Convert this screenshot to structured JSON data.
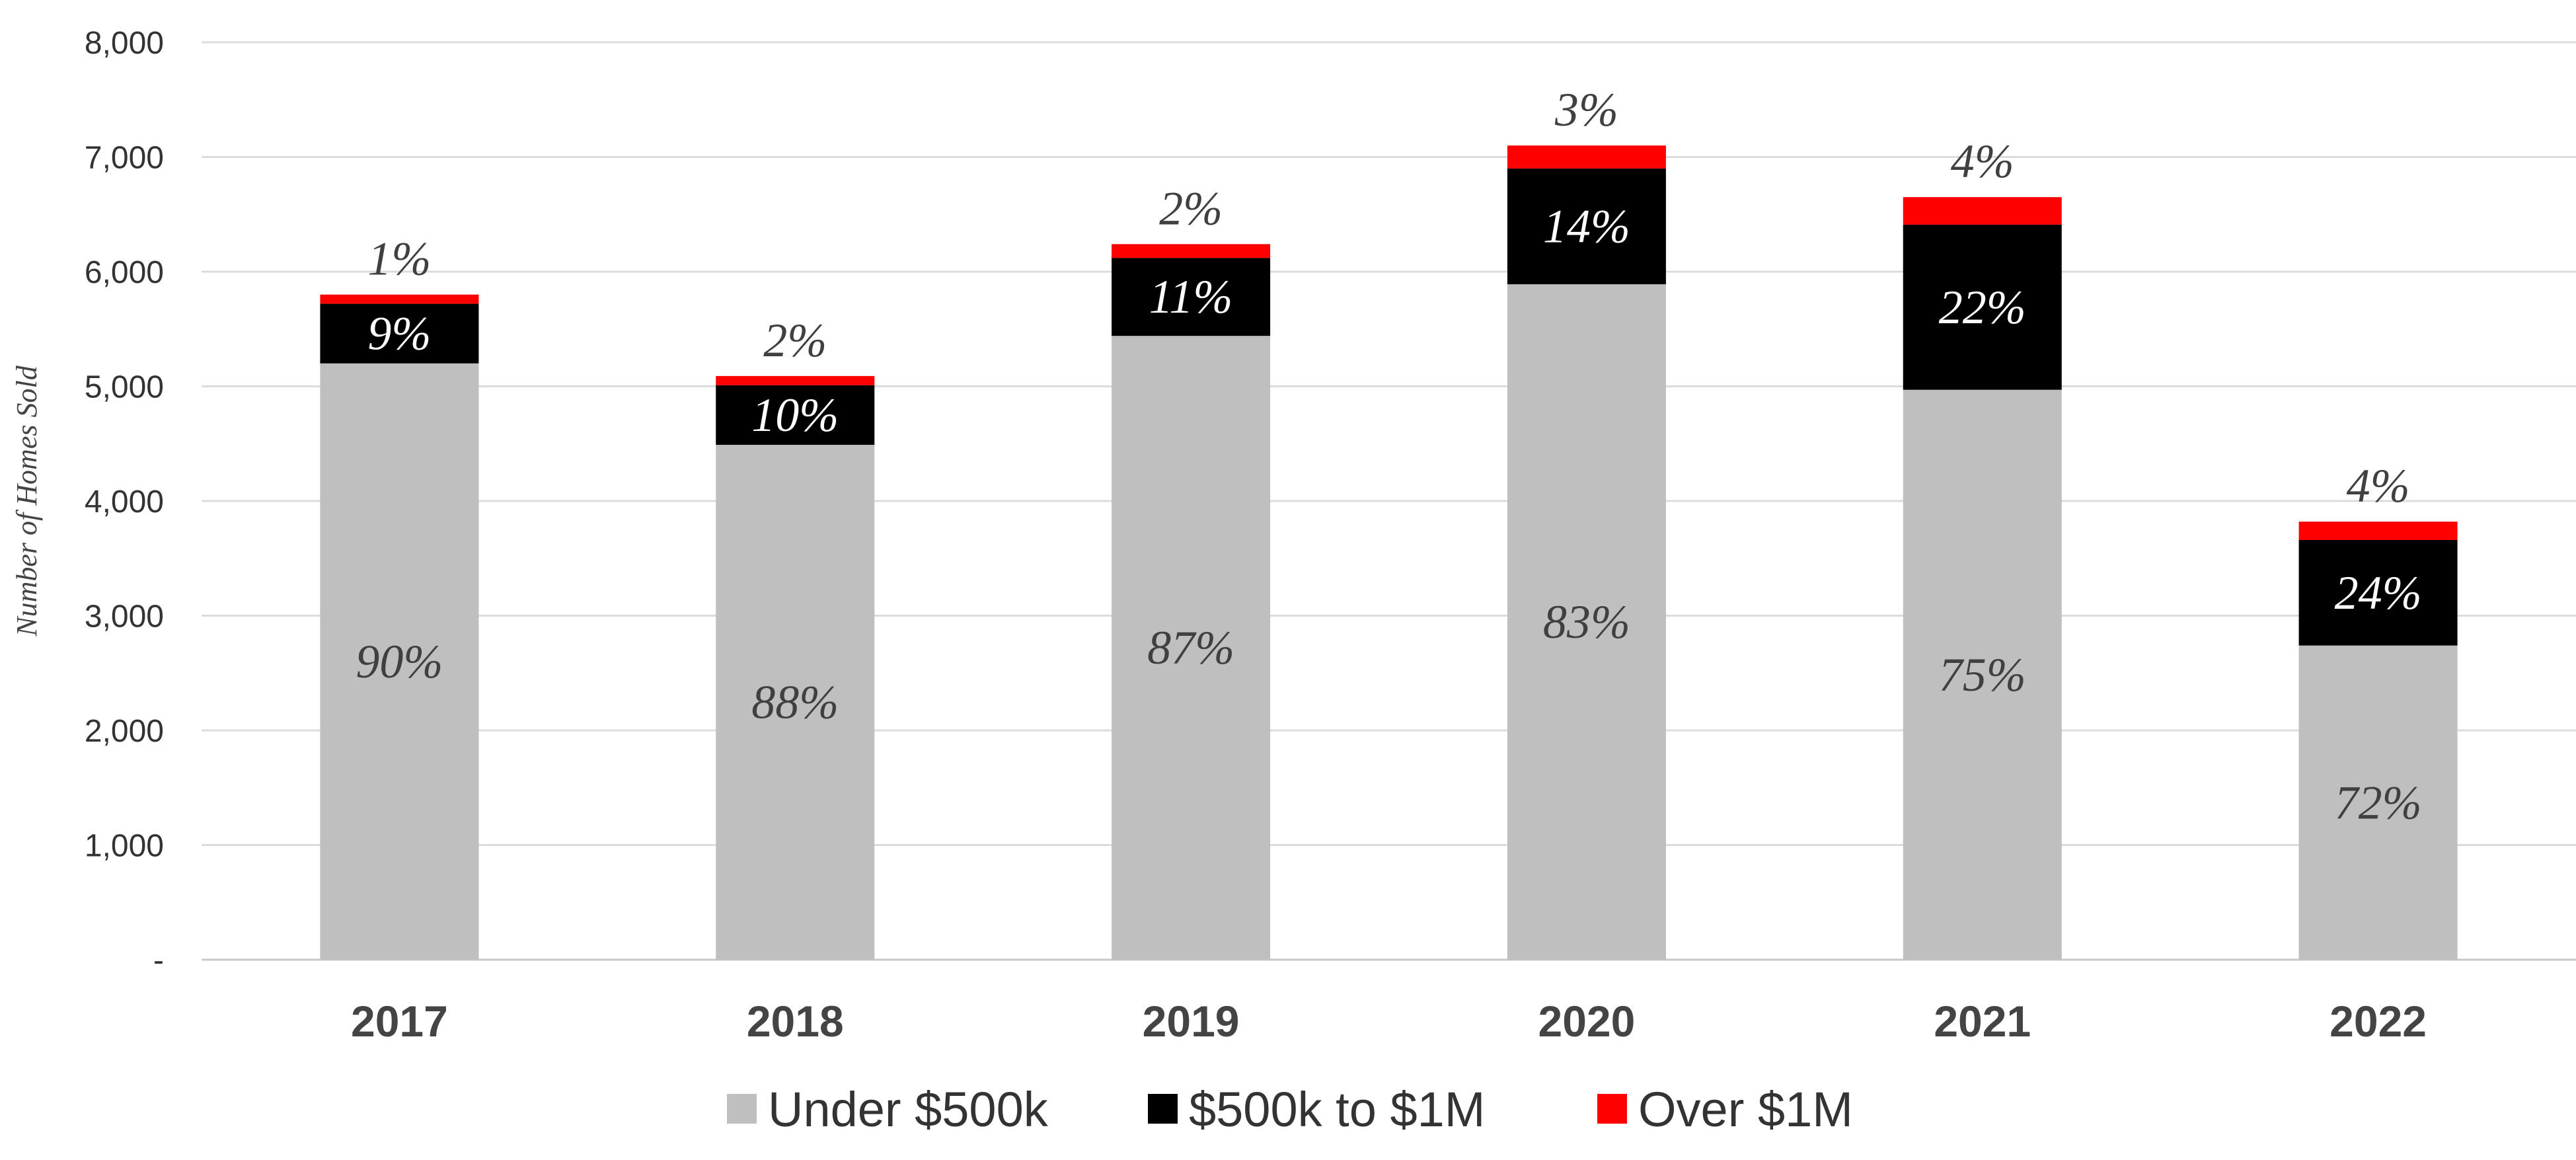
{
  "chart_data": {
    "type": "bar",
    "stacked": true,
    "title": "",
    "xlabel": "",
    "ylabel": "Number of Homes Sold",
    "ylim": [
      0,
      8000
    ],
    "yticks": [
      0,
      1000,
      2000,
      3000,
      4000,
      5000,
      6000,
      7000,
      8000
    ],
    "ytick_labels": [
      "-",
      "1,000",
      "2,000",
      "3,000",
      "4,000",
      "5,000",
      "6,000",
      "7,000",
      "8,000"
    ],
    "grid": true,
    "legend_position": "bottom-center",
    "categories": [
      "2017",
      "2018",
      "2019",
      "2020",
      "2021",
      "2022"
    ],
    "series": [
      {
        "name": "Under $500k",
        "color": "#bfbfbf",
        "label_color": "#404040",
        "values": [
          5200,
          4490,
          5440,
          5890,
          4970,
          2740
        ],
        "labels": [
          "90%",
          "88%",
          "87%",
          "83%",
          "75%",
          "72%"
        ]
      },
      {
        "name": "$500k to $1M",
        "color": "#000000",
        "label_color": "#ffffff",
        "values": [
          520,
          520,
          680,
          1010,
          1440,
          920
        ],
        "labels": [
          "9%",
          "10%",
          "11%",
          "14%",
          "22%",
          "24%"
        ]
      },
      {
        "name": "Over $1M",
        "color": "#ff0000",
        "label_color": "#404040",
        "values": [
          80,
          80,
          120,
          200,
          240,
          160
        ],
        "labels": [
          "1%",
          "2%",
          "2%",
          "3%",
          "4%",
          "4%"
        ]
      }
    ]
  }
}
